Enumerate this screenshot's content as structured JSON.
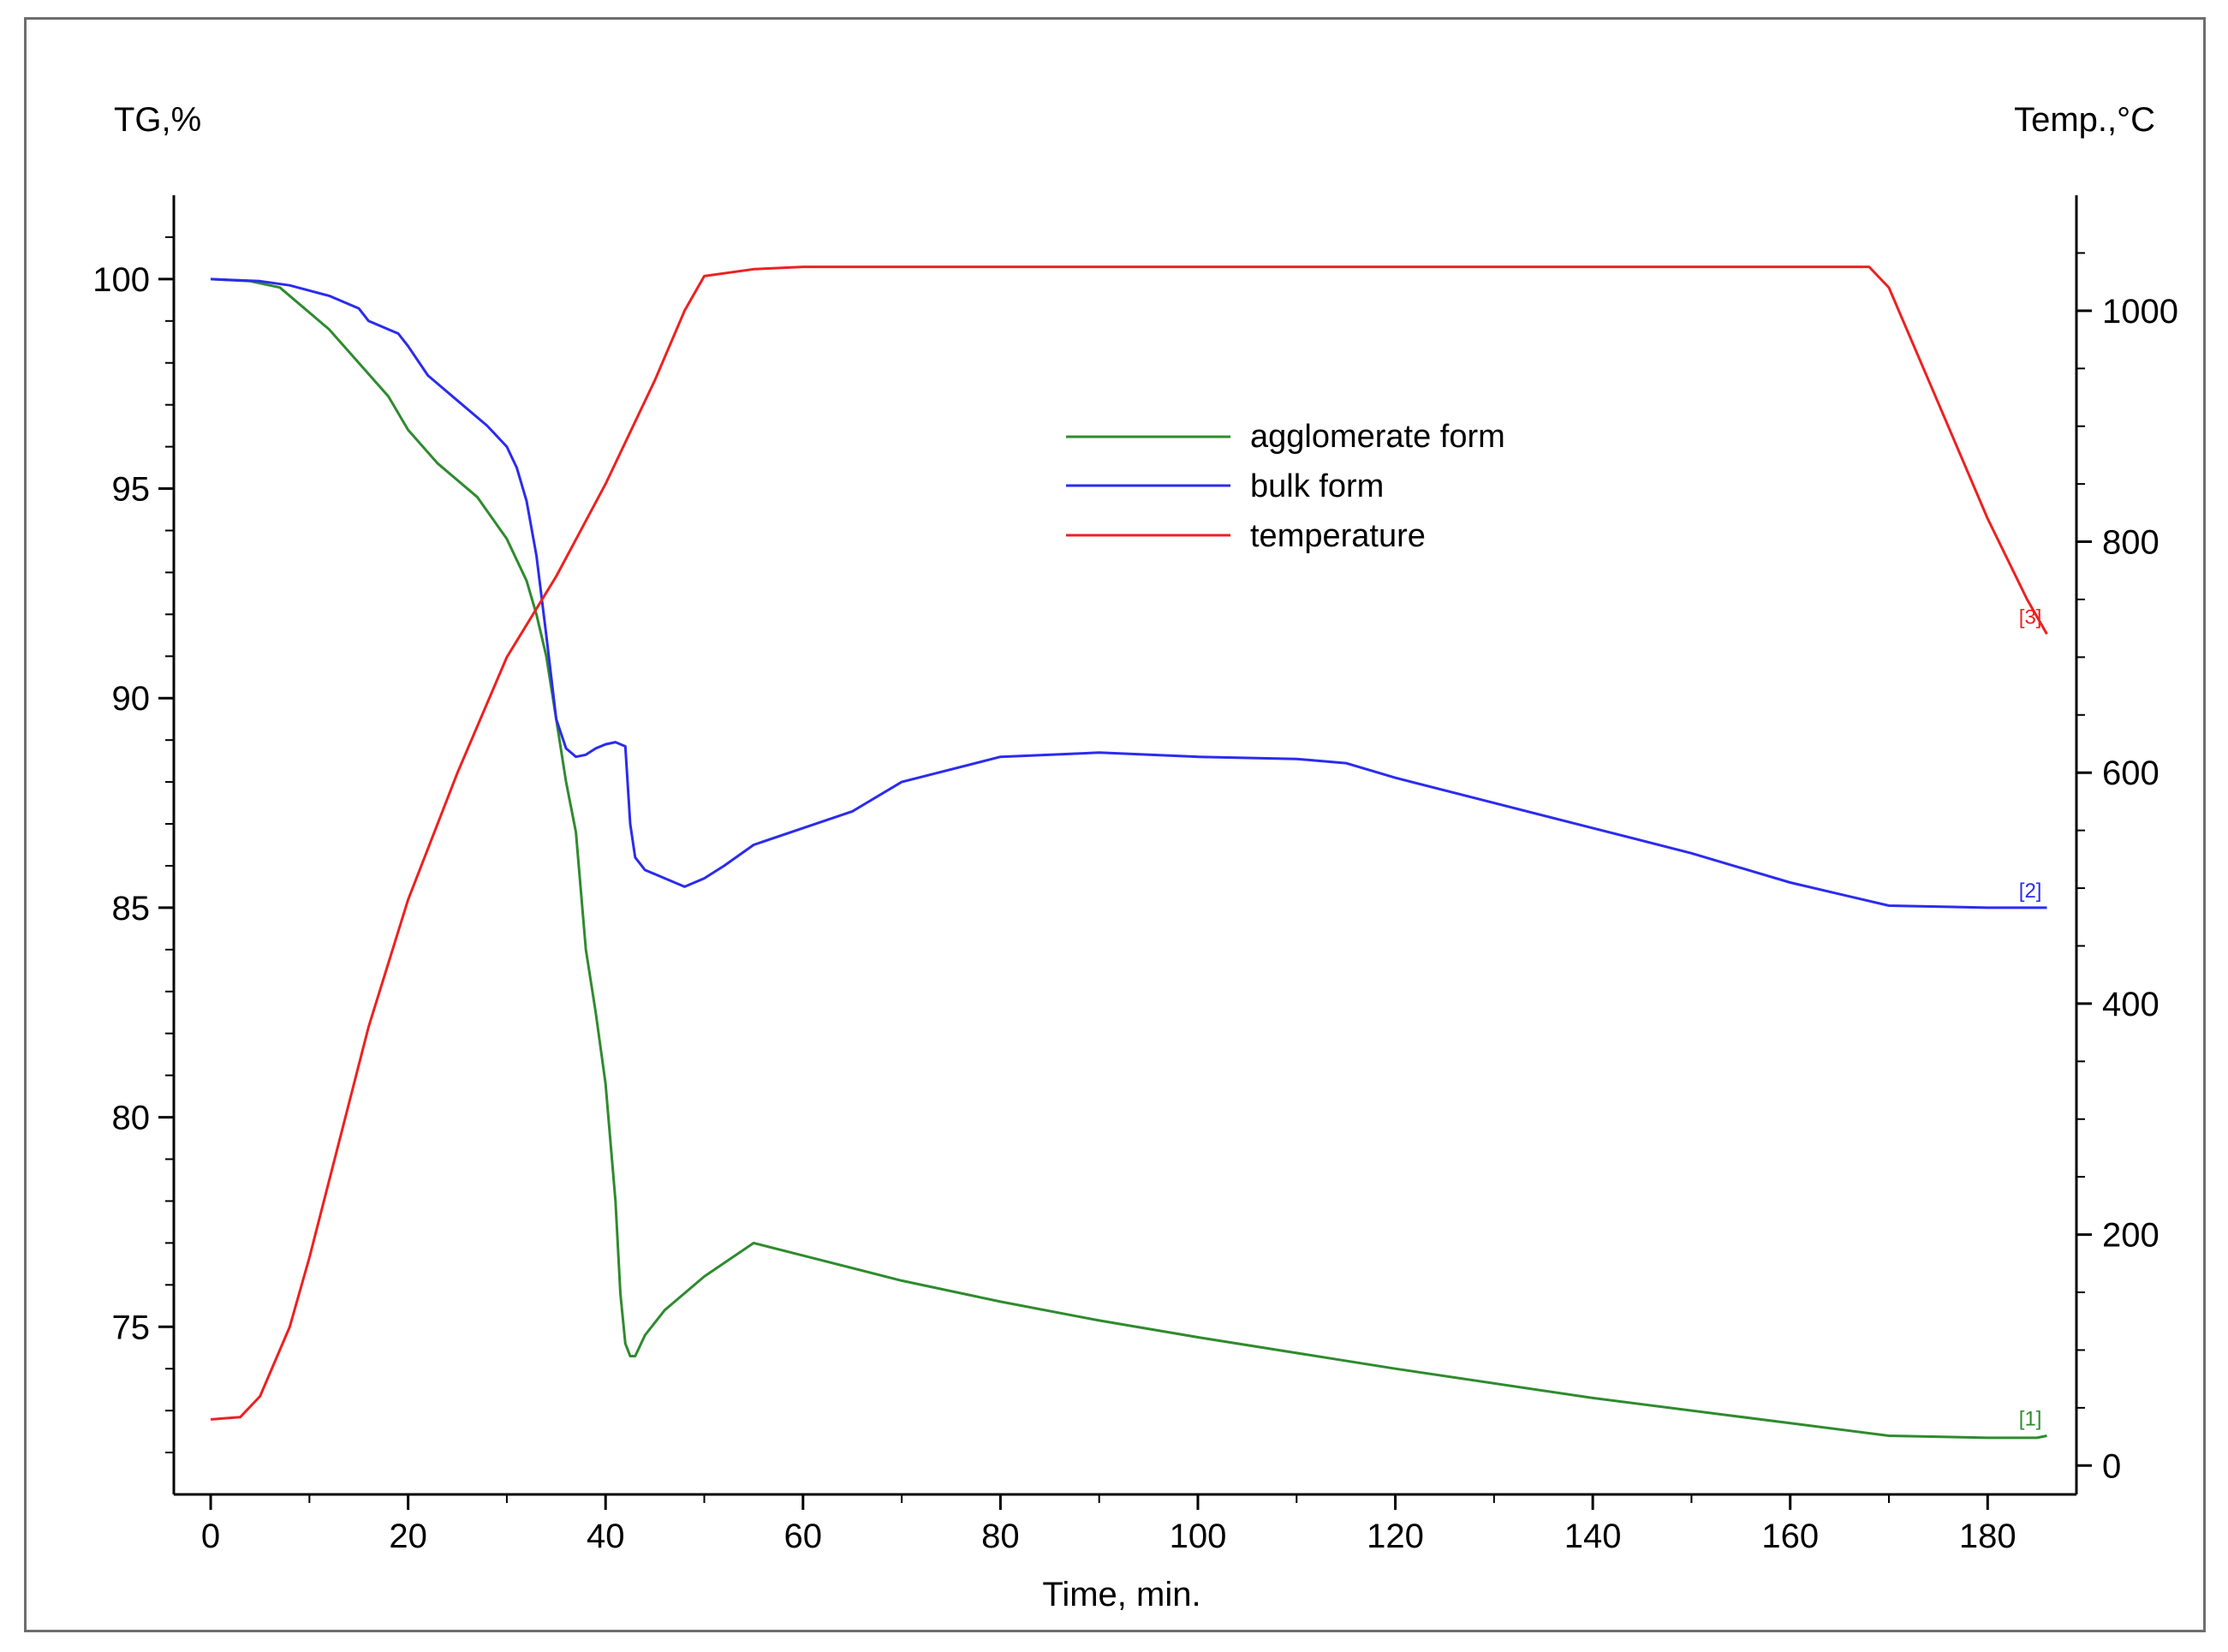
{
  "chart_data": {
    "type": "line",
    "xlabel": "Time, min.",
    "ylabel_left": "TG,%",
    "ylabel_right": "Temp.,°C",
    "xlim": [
      -2,
      187
    ],
    "ylim_left": [
      71,
      102
    ],
    "ylim_right": [
      -25,
      1100
    ],
    "x_ticks": [
      0,
      20,
      40,
      60,
      80,
      100,
      120,
      140,
      160,
      180
    ],
    "y_left_ticks": [
      75,
      80,
      85,
      90,
      95,
      100
    ],
    "y_right_ticks": [
      0,
      200,
      400,
      600,
      800,
      1000
    ],
    "grid": false,
    "legend_position": "top-center",
    "series": [
      {
        "name": "agglomerate form",
        "axis": "left",
        "color": "#2e8b2e",
        "end_label": "[1]",
        "x": [
          0,
          4,
          7,
          9,
          12,
          15,
          18,
          20,
          23,
          27,
          30,
          32,
          33,
          34,
          35,
          36,
          37,
          38,
          39,
          40,
          41,
          41.5,
          42,
          42.5,
          43,
          44,
          46,
          50,
          55,
          60,
          70,
          80,
          90,
          100,
          120,
          140,
          160,
          170,
          180,
          185,
          186
        ],
        "y": [
          100,
          99.95,
          99.8,
          99.4,
          98.8,
          98.0,
          97.2,
          96.4,
          95.6,
          94.8,
          93.8,
          92.8,
          92.0,
          91.0,
          89.5,
          88.0,
          86.8,
          84.0,
          82.5,
          80.8,
          78.0,
          75.8,
          74.6,
          74.3,
          74.3,
          74.8,
          75.4,
          76.2,
          77.0,
          76.7,
          76.1,
          75.6,
          75.15,
          74.75,
          74.0,
          73.3,
          72.7,
          72.4,
          72.35,
          72.35,
          72.4
        ]
      },
      {
        "name": "bulk form",
        "axis": "left",
        "color": "#2b2bf0",
        "end_label": "[2]",
        "x": [
          0,
          5,
          8,
          12,
          15,
          16,
          19,
          20,
          22,
          25,
          28,
          30,
          31,
          32,
          33,
          34,
          35,
          36,
          37,
          38,
          39,
          40,
          41,
          42,
          42.5,
          43,
          44,
          46,
          48,
          50,
          52,
          55,
          60,
          65,
          70,
          80,
          90,
          100,
          110,
          115,
          120,
          130,
          140,
          150,
          160,
          170,
          180,
          186
        ],
        "y": [
          100,
          99.95,
          99.85,
          99.6,
          99.3,
          99.0,
          98.7,
          98.4,
          97.7,
          97.1,
          96.5,
          96.0,
          95.5,
          94.7,
          93.4,
          91.5,
          89.5,
          88.8,
          88.6,
          88.65,
          88.8,
          88.9,
          88.95,
          88.85,
          87.0,
          86.2,
          85.9,
          85.7,
          85.5,
          85.7,
          86.0,
          86.5,
          86.9,
          87.3,
          88.0,
          88.6,
          88.7,
          88.6,
          88.55,
          88.45,
          88.1,
          87.5,
          86.9,
          86.3,
          85.6,
          85.05,
          85.0,
          85.0
        ]
      },
      {
        "name": "temperature",
        "axis": "right",
        "color": "#ee2020",
        "end_label": "[3]",
        "x": [
          0,
          3,
          5,
          8,
          10,
          13,
          16,
          20,
          25,
          30,
          35,
          40,
          45,
          48,
          50,
          55,
          60,
          80,
          100,
          120,
          140,
          160,
          168,
          170,
          175,
          180,
          184,
          186
        ],
        "y": [
          40,
          42,
          60,
          120,
          180,
          280,
          380,
          490,
          600,
          700,
          770,
          850,
          940,
          1000,
          1030,
          1036,
          1038,
          1038,
          1038,
          1038,
          1038,
          1038,
          1038,
          1020,
          920,
          820,
          750,
          720
        ]
      }
    ]
  }
}
